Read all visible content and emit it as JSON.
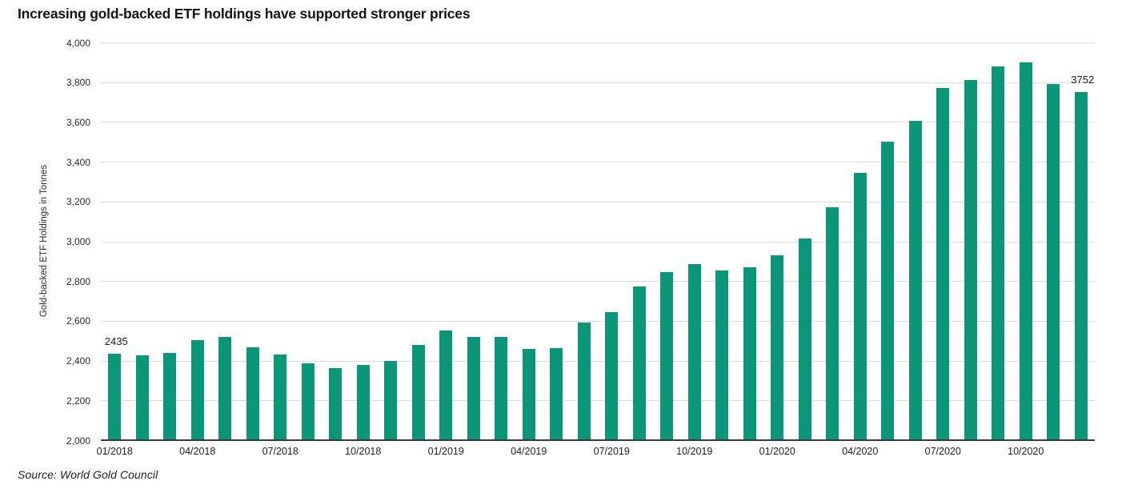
{
  "page": {
    "title": "Increasing gold-backed ETF holdings have supported stronger prices",
    "source": "Source: World Gold Council"
  },
  "chart_data": {
    "type": "bar",
    "title": "Increasing gold-backed ETF holdings have supported stronger prices",
    "xlabel": "",
    "ylabel": "Gold-backed ETF Holdings in Tonnes",
    "source": "Source: World Gold Council",
    "ylim": [
      2000,
      4000
    ],
    "y_tick_step": 200,
    "y_ticks": [
      {
        "value": 2000,
        "label": "2,000"
      },
      {
        "value": 2200,
        "label": "2,200"
      },
      {
        "value": 2400,
        "label": "2,400"
      },
      {
        "value": 2600,
        "label": "2,600"
      },
      {
        "value": 2800,
        "label": "2,800"
      },
      {
        "value": 3000,
        "label": "3,000"
      },
      {
        "value": 3200,
        "label": "3,200"
      },
      {
        "value": 3400,
        "label": "3,400"
      },
      {
        "value": 3600,
        "label": "3,600"
      },
      {
        "value": 3800,
        "label": "3,800"
      },
      {
        "value": 4000,
        "label": "4,000"
      }
    ],
    "categories": [
      "01/2018",
      "02/2018",
      "03/2018",
      "04/2018",
      "05/2018",
      "06/2018",
      "07/2018",
      "08/2018",
      "09/2018",
      "10/2018",
      "11/2018",
      "12/2018",
      "01/2019",
      "02/2019",
      "03/2019",
      "04/2019",
      "05/2019",
      "06/2019",
      "07/2019",
      "08/2019",
      "09/2019",
      "10/2019",
      "11/2019",
      "12/2019",
      "01/2020",
      "02/2020",
      "03/2020",
      "04/2020",
      "05/2020",
      "06/2020",
      "07/2020",
      "08/2020",
      "09/2020",
      "10/2020",
      "11/2020",
      "12/2020"
    ],
    "values": [
      2435,
      2428,
      2437,
      2505,
      2520,
      2467,
      2430,
      2385,
      2363,
      2380,
      2398,
      2478,
      2551,
      2518,
      2520,
      2458,
      2461,
      2591,
      2644,
      2772,
      2846,
      2886,
      2855,
      2870,
      2930,
      3013,
      3172,
      3345,
      3502,
      3606,
      3772,
      3810,
      3880,
      3898,
      3790,
      3752
    ],
    "x_tick_every": 3,
    "x_tick_labels": [
      "01/2018",
      "04/2018",
      "07/2018",
      "10/2018",
      "01/2019",
      "04/2019",
      "07/2019",
      "10/2019",
      "01/2020",
      "04/2020",
      "07/2020",
      "10/2020"
    ],
    "annotations": [
      {
        "index": 0,
        "text": "2435"
      },
      {
        "index": 35,
        "text": "3752"
      }
    ],
    "bar_color": "#0c9678",
    "grid_color": "#dcdcdc",
    "axis_color": "#3a3a3a",
    "legend_position": "none",
    "grid": true
  }
}
